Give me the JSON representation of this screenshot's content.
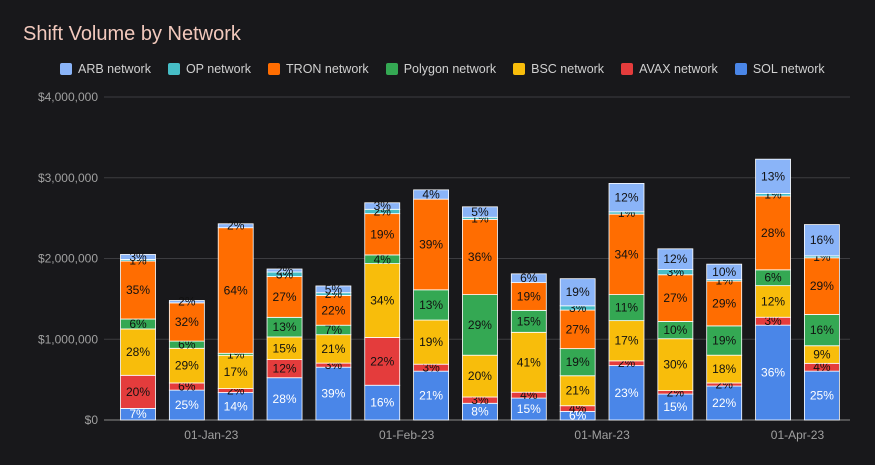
{
  "chart_data": {
    "type": "bar",
    "stacked": true,
    "title": "Shift Volume by Network",
    "xlabel": "",
    "ylabel": "",
    "ylim": [
      0,
      4000000
    ],
    "y_ticks": [
      "$0",
      "$1,000,000",
      "$2,000,000",
      "$3,000,000",
      "$4,000,000"
    ],
    "x_tick_labels": [
      "01-Jan-23",
      "01-Feb-23",
      "01-Mar-23",
      "01-Apr-23"
    ],
    "x_tick_bar_index": [
      1,
      5,
      9,
      13
    ],
    "legend_position": "top",
    "grid": true,
    "totals": [
      2050000,
      1480000,
      2430000,
      1870000,
      1660000,
      2690000,
      2850000,
      2640000,
      1810000,
      1750000,
      2930000,
      2120000,
      1930000,
      3230000,
      2420000
    ],
    "series": [
      {
        "name": "SOL network",
        "color": "#4a86e8",
        "shares": [
          7,
          25,
          14,
          28,
          39,
          16,
          21,
          8,
          15,
          6,
          23,
          15,
          22,
          36,
          25
        ],
        "labels": [
          "7%",
          "25%",
          "14%",
          "28%",
          "39%",
          "16%",
          "21%",
          "8%",
          "15%",
          "6%",
          "23%",
          "15%",
          "22%",
          "36%",
          "25%"
        ]
      },
      {
        "name": "AVAX network",
        "color": "#e43c3c",
        "shares": [
          20,
          6,
          2,
          12,
          3,
          22,
          3,
          3,
          4,
          4,
          2,
          2,
          2,
          3,
          4
        ],
        "labels": [
          "20%",
          "6%",
          "2%",
          "12%",
          "3%",
          "22%",
          "3%",
          "3%",
          "4%",
          "4%",
          "2%",
          "2%",
          "2%",
          "3%",
          "4%"
        ]
      },
      {
        "name": "BSC network",
        "color": "#f8bd0b",
        "shares": [
          28,
          29,
          17,
          15,
          21,
          34,
          19,
          20,
          41,
          21,
          17,
          30,
          18,
          12,
          9
        ],
        "labels": [
          "28%",
          "29%",
          "17%",
          "15%",
          "21%",
          "34%",
          "19%",
          "20%",
          "41%",
          "21%",
          "17%",
          "30%",
          "18%",
          "12%",
          "9%"
        ]
      },
      {
        "name": "Polygon network",
        "color": "#34a853",
        "shares": [
          6,
          6,
          1,
          13,
          7,
          4,
          13,
          29,
          15,
          19,
          11,
          10,
          19,
          6,
          16
        ],
        "labels": [
          "6%",
          "6%",
          "1%",
          "13%",
          "7%",
          "4%",
          "13%",
          "29%",
          "15%",
          "19%",
          "11%",
          "10%",
          "19%",
          "6%",
          "16%"
        ]
      },
      {
        "name": "TRON network",
        "color": "#ff6d01",
        "shares": [
          35,
          32,
          64,
          27,
          22,
          19,
          39,
          36,
          19,
          27,
          34,
          27,
          29,
          28,
          29
        ],
        "labels": [
          "35%",
          "32%",
          "64%",
          "27%",
          "22%",
          "19%",
          "39%",
          "36%",
          "19%",
          "27%",
          "34%",
          "27%",
          "29%",
          "28%",
          "29%"
        ]
      },
      {
        "name": "OP network",
        "color": "#46bdc6",
        "shares": [
          1,
          0,
          0,
          3,
          2,
          2,
          0,
          1,
          0,
          3,
          1,
          3,
          1,
          1,
          1
        ],
        "labels": [
          "1%",
          "",
          "",
          "3%",
          "2%",
          "2%",
          "",
          "1%",
          "",
          "3%",
          "1%",
          "3%",
          "1%",
          "1%",
          "1%"
        ]
      },
      {
        "name": "ARB network",
        "color": "#8ab4f8",
        "shares": [
          3,
          2,
          2,
          2,
          5,
          3,
          4,
          5,
          6,
          19,
          12,
          12,
          10,
          13,
          16
        ],
        "labels": [
          "3%",
          "2%",
          "2%",
          "2%",
          "5%",
          "3%",
          "4%",
          "5%",
          "6%",
          "19%",
          "12%",
          "12%",
          "10%",
          "13%",
          "16%"
        ]
      }
    ],
    "legend_order": [
      "ARB network",
      "OP network",
      "TRON network",
      "Polygon network",
      "BSC network",
      "AVAX network",
      "SOL network"
    ]
  }
}
